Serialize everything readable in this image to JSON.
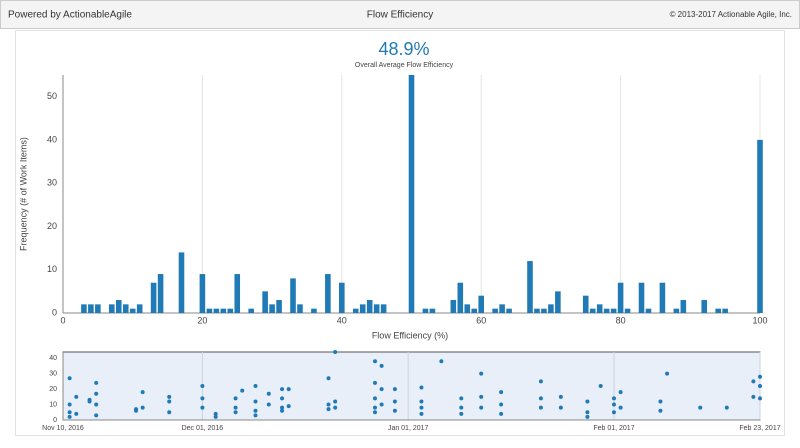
{
  "header": {
    "left": "Powered by ActionableAgile",
    "title": "Flow Efficiency",
    "right": "© 2013-2017 Actionable Agile, Inc."
  },
  "summary": {
    "value": "48.9%",
    "label": "Overall Average Flow Efficiency"
  },
  "chart_data": [
    {
      "type": "bar",
      "color": "#1f7ab5",
      "xlabel": "Flow Efficiency (%)",
      "ylabel": "Frequency (# of Work Items)",
      "x": [
        3,
        4,
        5,
        7,
        8,
        9,
        10,
        11,
        13,
        14,
        17,
        20,
        21,
        22,
        23,
        24,
        25,
        27,
        29,
        30,
        31,
        33,
        34,
        36,
        38,
        40,
        42,
        43,
        44,
        45,
        46,
        50,
        52,
        53,
        56,
        57,
        58,
        59,
        60,
        62,
        63,
        64,
        67,
        68,
        69,
        70,
        71,
        75,
        76,
        77,
        78,
        79,
        80,
        81,
        83,
        84,
        86,
        88,
        89,
        92,
        94,
        95,
        100
      ],
      "values": [
        2,
        2,
        2,
        2,
        3,
        2,
        1,
        2,
        7,
        9,
        14,
        9,
        1,
        1,
        1,
        1,
        9,
        1,
        5,
        2,
        3,
        8,
        2,
        1,
        9,
        7,
        1,
        2,
        3,
        2,
        2,
        55,
        1,
        1,
        3,
        7,
        2,
        1,
        4,
        1,
        2,
        1,
        12,
        1,
        1,
        2,
        5,
        4,
        1,
        2,
        1,
        1,
        7,
        1,
        7,
        1,
        7,
        1,
        3,
        3,
        1,
        1,
        40
      ],
      "xlim": [
        0,
        100
      ],
      "xticks": [
        0,
        20,
        40,
        60,
        80,
        100
      ],
      "ylim": [
        0,
        55
      ],
      "yticks": [
        0,
        10,
        20,
        30,
        40,
        50
      ],
      "grid": true
    },
    {
      "type": "scatter",
      "color": "#1f7ab5",
      "x": [
        "2016-11-11",
        "2016-11-11",
        "2016-11-11",
        "2016-11-11",
        "2016-11-12",
        "2016-11-12",
        "2016-11-14",
        "2016-11-14",
        "2016-11-15",
        "2016-11-15",
        "2016-11-15",
        "2016-11-15",
        "2016-11-21",
        "2016-11-21",
        "2016-11-22",
        "2016-11-22",
        "2016-11-26",
        "2016-11-26",
        "2016-11-26",
        "2016-12-01",
        "2016-12-01",
        "2016-12-01",
        "2016-12-03",
        "2016-12-03",
        "2016-12-06",
        "2016-12-06",
        "2016-12-06",
        "2016-12-07",
        "2016-12-09",
        "2016-12-09",
        "2016-12-09",
        "2016-12-09",
        "2016-12-11",
        "2016-12-11",
        "2016-12-13",
        "2016-12-13",
        "2016-12-13",
        "2016-12-13",
        "2016-12-14",
        "2016-12-14",
        "2016-12-20",
        "2016-12-20",
        "2016-12-20",
        "2016-12-21",
        "2016-12-21",
        "2016-12-21",
        "2016-12-27",
        "2016-12-27",
        "2016-12-27",
        "2016-12-27",
        "2016-12-27",
        "2016-12-28",
        "2016-12-28",
        "2016-12-28",
        "2016-12-30",
        "2016-12-30",
        "2016-12-30",
        "2017-01-03",
        "2017-01-03",
        "2017-01-03",
        "2017-01-03",
        "2017-01-06",
        "2017-01-09",
        "2017-01-09",
        "2017-01-09",
        "2017-01-12",
        "2017-01-12",
        "2017-01-12",
        "2017-01-15",
        "2017-01-15",
        "2017-01-15",
        "2017-01-21",
        "2017-01-21",
        "2017-01-21",
        "2017-01-24",
        "2017-01-24",
        "2017-01-28",
        "2017-01-28",
        "2017-01-28",
        "2017-01-30",
        "2017-02-01",
        "2017-02-01",
        "2017-02-01",
        "2017-02-02",
        "2017-02-02",
        "2017-02-08",
        "2017-02-08",
        "2017-02-09",
        "2017-02-14",
        "2017-02-18",
        "2017-02-22",
        "2017-02-22",
        "2017-02-23",
        "2017-02-23",
        "2017-02-23"
      ],
      "values": [
        27,
        10,
        5,
        2,
        15,
        4,
        13,
        12,
        24,
        17,
        10,
        3,
        6,
        7,
        18,
        8,
        15,
        12,
        5,
        22,
        14,
        8,
        4,
        2,
        14,
        8,
        5,
        19,
        22,
        12,
        6,
        3,
        17,
        10,
        20,
        14,
        8,
        6,
        20,
        9,
        27,
        10,
        7,
        44,
        12,
        8,
        38,
        24,
        14,
        8,
        5,
        35,
        20,
        10,
        20,
        12,
        6,
        21,
        12,
        8,
        4,
        38,
        14,
        8,
        4,
        30,
        15,
        8,
        18,
        10,
        4,
        25,
        14,
        8,
        15,
        8,
        12,
        5,
        2,
        22,
        14,
        10,
        5,
        18,
        8,
        12,
        6,
        30,
        8,
        8,
        25,
        15,
        28,
        22,
        14
      ],
      "xlim": [
        "2016-11-10",
        "2017-02-23"
      ],
      "xticks": [
        {
          "value": "2016-11-10",
          "label": "Nov 10, 2016"
        },
        {
          "value": "2016-12-01",
          "label": "Dec 01, 2016"
        },
        {
          "value": "2017-01-01",
          "label": "Jan 01, 2017"
        },
        {
          "value": "2017-02-01",
          "label": "Feb 01, 2017"
        },
        {
          "value": "2017-02-23",
          "label": "Feb 23, 2017"
        }
      ],
      "ylim": [
        0,
        44
      ],
      "yticks": [
        0,
        10,
        20,
        30,
        40
      ],
      "grid": true
    }
  ]
}
